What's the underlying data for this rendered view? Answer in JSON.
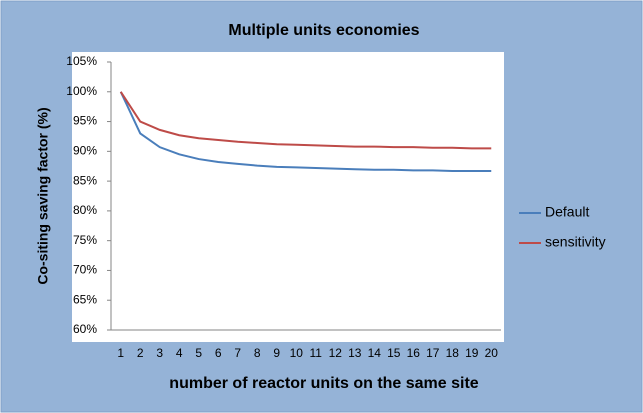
{
  "chart_data": {
    "type": "line",
    "title": "Multiple units economies",
    "x_label": "number of reactor units on the same site",
    "y_label": "Co-siting saving factor (%)",
    "categories": [
      1,
      2,
      3,
      4,
      5,
      6,
      7,
      8,
      9,
      10,
      11,
      12,
      13,
      14,
      15,
      16,
      17,
      18,
      19,
      20
    ],
    "series": [
      {
        "name": "Default",
        "color": "#4a7ebb",
        "values": [
          100,
          93,
          90.7,
          89.5,
          88.7,
          88.2,
          87.9,
          87.6,
          87.4,
          87.3,
          87.2,
          87.1,
          87.0,
          86.9,
          86.9,
          86.8,
          86.8,
          86.7,
          86.7,
          86.7
        ]
      },
      {
        "name": "sensitivity",
        "color": "#be4b48",
        "values": [
          100,
          95,
          93.6,
          92.7,
          92.2,
          91.9,
          91.6,
          91.4,
          91.2,
          91.1,
          91.0,
          90.9,
          90.8,
          90.8,
          90.7,
          90.7,
          90.6,
          90.6,
          90.5,
          90.5
        ]
      }
    ],
    "ylim": [
      60,
      105
    ],
    "yticks": [
      {
        "value": 60,
        "label": "60%"
      },
      {
        "value": 65,
        "label": "65%"
      },
      {
        "value": 70,
        "label": "70%"
      },
      {
        "value": 75,
        "label": "75%"
      },
      {
        "value": 80,
        "label": "80%"
      },
      {
        "value": 85,
        "label": "85%"
      },
      {
        "value": 90,
        "label": "90%"
      },
      {
        "value": 95,
        "label": "95%"
      },
      {
        "value": 100,
        "label": "100%"
      },
      {
        "value": 105,
        "label": "105%"
      }
    ],
    "grid": false,
    "legend": "right"
  }
}
